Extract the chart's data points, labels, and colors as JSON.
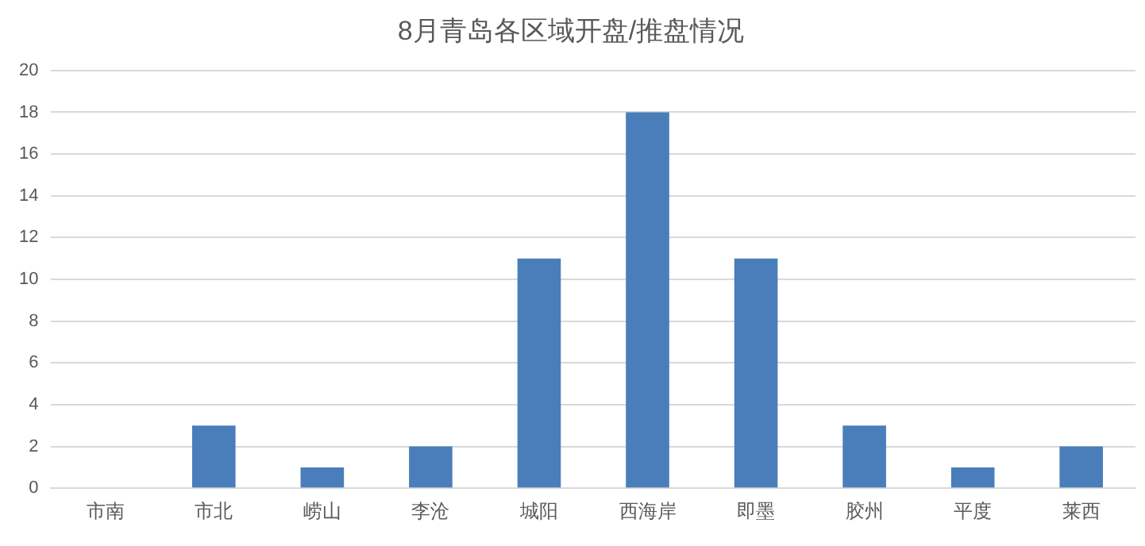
{
  "chart_data": {
    "type": "bar",
    "title": "8月青岛各区域开盘/推盘情况",
    "categories": [
      "市南",
      "市北",
      "崂山",
      "李沧",
      "城阳",
      "西海岸",
      "即墨",
      "胶州",
      "平度",
      "莱西"
    ],
    "values": [
      0,
      3,
      1,
      2,
      11,
      18,
      11,
      3,
      1,
      2
    ],
    "color": "#4a7ebb",
    "ylim": [
      0,
      20
    ],
    "yticks": [
      0,
      2,
      4,
      6,
      8,
      10,
      12,
      14,
      16,
      18,
      20
    ],
    "grid": "y",
    "legend": false
  }
}
